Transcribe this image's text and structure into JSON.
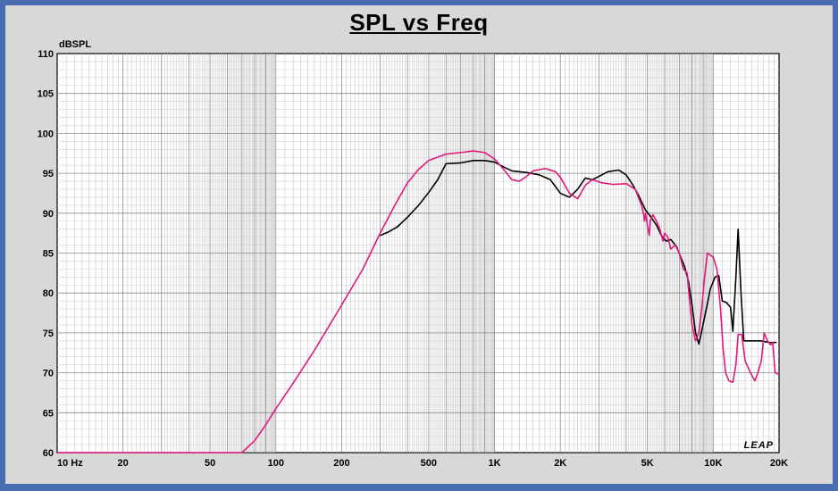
{
  "chart_data": {
    "type": "line",
    "title": "SPL vs Freq",
    "ylabel": "dBSPL",
    "xscale": "log",
    "xlim": [
      10,
      20000
    ],
    "ylim": [
      60,
      110
    ],
    "grid": true,
    "xticks": [
      {
        "value": 10,
        "label": "10 Hz"
      },
      {
        "value": 20,
        "label": "20"
      },
      {
        "value": 50,
        "label": "50"
      },
      {
        "value": 100,
        "label": "100"
      },
      {
        "value": 200,
        "label": "200"
      },
      {
        "value": 500,
        "label": "500"
      },
      {
        "value": 1000,
        "label": "1K"
      },
      {
        "value": 2000,
        "label": "2K"
      },
      {
        "value": 5000,
        "label": "5K"
      },
      {
        "value": 10000,
        "label": "10K"
      },
      {
        "value": 20000,
        "label": "20K"
      }
    ],
    "yticks": [
      60,
      65,
      70,
      75,
      80,
      85,
      90,
      95,
      100,
      105,
      110
    ],
    "watermark": "LEAP",
    "series": [
      {
        "color": "#000000",
        "points": [
          [
            300,
            87.2
          ],
          [
            330,
            87.7
          ],
          [
            360,
            88.3
          ],
          [
            400,
            89.5
          ],
          [
            450,
            91.0
          ],
          [
            500,
            92.6
          ],
          [
            550,
            94.2
          ],
          [
            600,
            96.2
          ],
          [
            700,
            96.3
          ],
          [
            800,
            96.6
          ],
          [
            900,
            96.6
          ],
          [
            1000,
            96.4
          ],
          [
            1100,
            95.8
          ],
          [
            1200,
            95.3
          ],
          [
            1400,
            95.1
          ],
          [
            1600,
            94.8
          ],
          [
            1800,
            94.2
          ],
          [
            2000,
            92.5
          ],
          [
            2200,
            92.0
          ],
          [
            2400,
            93.0
          ],
          [
            2600,
            94.4
          ],
          [
            2800,
            94.2
          ],
          [
            3000,
            94.6
          ],
          [
            3300,
            95.2
          ],
          [
            3700,
            95.4
          ],
          [
            4000,
            94.8
          ],
          [
            4300,
            93.5
          ],
          [
            4600,
            92.0
          ],
          [
            4900,
            90.4
          ],
          [
            5200,
            89.5
          ],
          [
            5500,
            88.5
          ],
          [
            5800,
            87.2
          ],
          [
            6100,
            86.5
          ],
          [
            6400,
            86.7
          ],
          [
            6800,
            85.8
          ],
          [
            7100,
            84.5
          ],
          [
            7400,
            83.3
          ],
          [
            7700,
            81.5
          ],
          [
            8000,
            78.5
          ],
          [
            8300,
            75.0
          ],
          [
            8600,
            73.6
          ],
          [
            8900,
            75.5
          ],
          [
            9300,
            78.0
          ],
          [
            9700,
            80.5
          ],
          [
            10200,
            82.0
          ],
          [
            10600,
            82.2
          ],
          [
            11000,
            79.0
          ],
          [
            11500,
            78.8
          ],
          [
            12000,
            78.2
          ],
          [
            12300,
            75.2
          ],
          [
            12700,
            82.0
          ],
          [
            13000,
            88.0
          ],
          [
            13400,
            80.0
          ],
          [
            13800,
            74.0
          ],
          [
            15000,
            74.0
          ],
          [
            16500,
            74.0
          ],
          [
            18000,
            73.8
          ],
          [
            19500,
            73.8
          ]
        ]
      },
      {
        "color": "#e0197d",
        "points": [
          [
            10,
            60.0
          ],
          [
            70,
            60.0
          ],
          [
            80,
            61.5
          ],
          [
            90,
            63.5
          ],
          [
            100,
            65.5
          ],
          [
            120,
            68.7
          ],
          [
            150,
            72.8
          ],
          [
            200,
            78.5
          ],
          [
            250,
            83.0
          ],
          [
            300,
            87.5
          ],
          [
            350,
            91.0
          ],
          [
            400,
            93.8
          ],
          [
            450,
            95.5
          ],
          [
            500,
            96.6
          ],
          [
            600,
            97.4
          ],
          [
            700,
            97.6
          ],
          [
            800,
            97.8
          ],
          [
            900,
            97.6
          ],
          [
            1000,
            96.8
          ],
          [
            1100,
            95.5
          ],
          [
            1200,
            94.2
          ],
          [
            1300,
            94.0
          ],
          [
            1400,
            94.6
          ],
          [
            1500,
            95.3
          ],
          [
            1700,
            95.6
          ],
          [
            1900,
            95.2
          ],
          [
            2000,
            94.5
          ],
          [
            2200,
            92.5
          ],
          [
            2400,
            91.8
          ],
          [
            2600,
            93.5
          ],
          [
            2800,
            94.2
          ],
          [
            3100,
            93.8
          ],
          [
            3500,
            93.6
          ],
          [
            4000,
            93.7
          ],
          [
            4400,
            93.0
          ],
          [
            4700,
            91.0
          ],
          [
            4800,
            90.0
          ],
          [
            4850,
            89.0
          ],
          [
            4900,
            90.0
          ],
          [
            5000,
            88.5
          ],
          [
            5100,
            87.2
          ],
          [
            5150,
            89.0
          ],
          [
            5300,
            89.8
          ],
          [
            5500,
            89.0
          ],
          [
            5700,
            88.0
          ],
          [
            5900,
            86.5
          ],
          [
            6000,
            87.5
          ],
          [
            6200,
            87.0
          ],
          [
            6400,
            85.5
          ],
          [
            6700,
            86.0
          ],
          [
            7000,
            85.0
          ],
          [
            7300,
            83.0
          ],
          [
            7600,
            82.5
          ],
          [
            7800,
            79.0
          ],
          [
            8000,
            76.0
          ],
          [
            8300,
            74.0
          ],
          [
            8600,
            75.0
          ],
          [
            8900,
            78.5
          ],
          [
            9100,
            81.5
          ],
          [
            9400,
            85.0
          ],
          [
            10000,
            84.5
          ],
          [
            10400,
            83.0
          ],
          [
            10800,
            78.0
          ],
          [
            11100,
            73.0
          ],
          [
            11400,
            70.0
          ],
          [
            11800,
            69.0
          ],
          [
            12300,
            68.8
          ],
          [
            12700,
            71.0
          ],
          [
            13000,
            74.8
          ],
          [
            13500,
            74.8
          ],
          [
            14000,
            71.5
          ],
          [
            14800,
            70.0
          ],
          [
            15500,
            69.0
          ],
          [
            16000,
            70.0
          ],
          [
            16600,
            71.5
          ],
          [
            17100,
            75.0
          ],
          [
            17700,
            74.0
          ],
          [
            18300,
            73.5
          ],
          [
            18700,
            73.8
          ],
          [
            19200,
            70.0
          ],
          [
            20000,
            69.8
          ]
        ]
      }
    ]
  }
}
